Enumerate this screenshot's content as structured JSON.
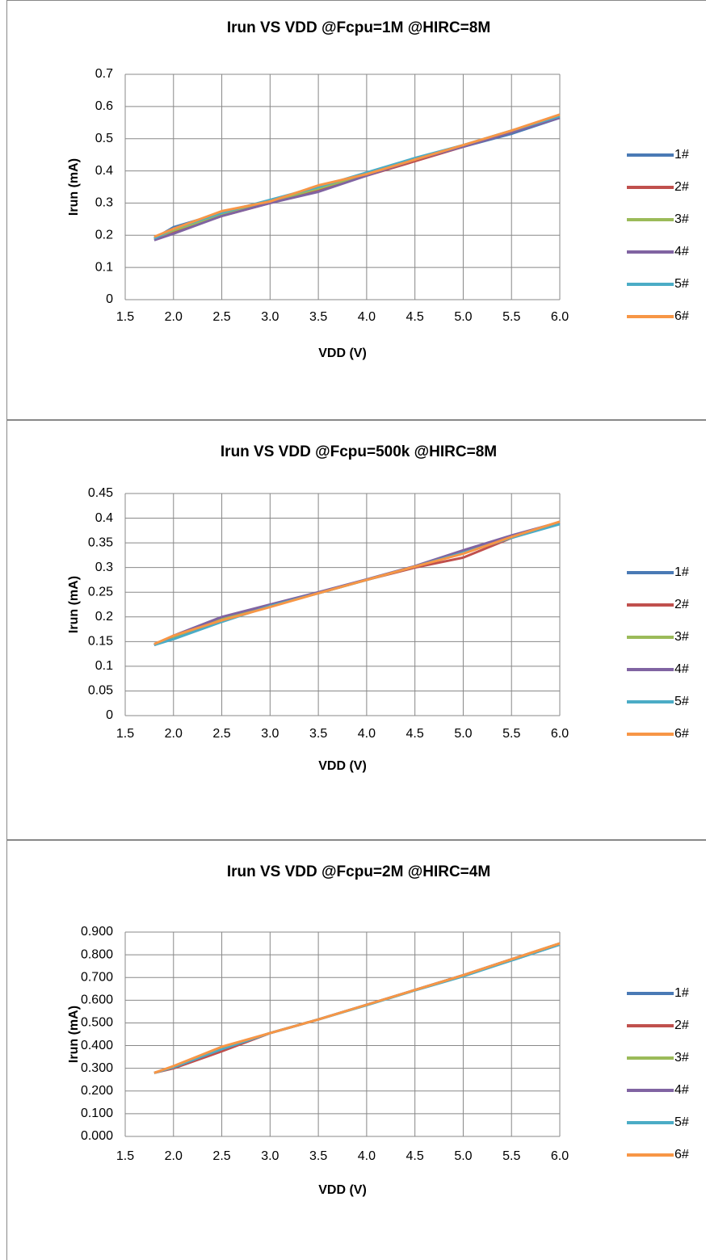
{
  "chart_data": [
    {
      "type": "line",
      "title": "Irun VS VDD @Fcpu=1M @HIRC=8M",
      "x_label": "VDD (V)",
      "y_label": "Irun (mA)",
      "x": [
        1.8,
        2.0,
        2.5,
        3.0,
        3.5,
        4.0,
        4.5,
        5.0,
        5.5,
        6.0
      ],
      "xlim": [
        1.5,
        6.0
      ],
      "xticks": [
        1.5,
        {
          "value": 2,
          "label": "2.0"
        },
        2.5,
        {
          "value": 3,
          "label": "3.0"
        },
        3.5,
        {
          "value": 4,
          "label": "4.0"
        },
        4.5,
        {
          "value": 5,
          "label": "5.0"
        },
        5.5,
        {
          "value": 6,
          "label": "6.0"
        }
      ],
      "ylim": [
        0,
        0.7
      ],
      "yticks": [
        0,
        0.1,
        0.2,
        0.3,
        0.4,
        0.5,
        0.6,
        0.7
      ],
      "grid": true,
      "legend": "right",
      "series": [
        {
          "name": "1#",
          "color": "#4a7ab5",
          "values": [
            0.19,
            0.225,
            0.27,
            0.305,
            0.345,
            0.39,
            0.435,
            0.475,
            0.515,
            0.565
          ]
        },
        {
          "name": "2#",
          "color": "#c0504d",
          "values": [
            0.19,
            0.21,
            0.26,
            0.3,
            0.34,
            0.385,
            0.43,
            0.475,
            0.52,
            0.57
          ]
        },
        {
          "name": "3#",
          "color": "#9bbb59",
          "values": [
            0.19,
            0.215,
            0.265,
            0.305,
            0.345,
            0.39,
            0.435,
            0.48,
            0.52,
            0.57
          ]
        },
        {
          "name": "4#",
          "color": "#8064a2",
          "values": [
            0.185,
            0.205,
            0.26,
            0.3,
            0.335,
            0.385,
            0.435,
            0.475,
            0.52,
            0.565
          ]
        },
        {
          "name": "5#",
          "color": "#4bacc6",
          "values": [
            0.19,
            0.22,
            0.27,
            0.31,
            0.35,
            0.395,
            0.44,
            0.48,
            0.525,
            0.57
          ]
        },
        {
          "name": "6#",
          "color": "#f79646",
          "values": [
            0.195,
            0.22,
            0.275,
            0.305,
            0.355,
            0.39,
            0.435,
            0.48,
            0.525,
            0.575
          ]
        }
      ]
    },
    {
      "type": "line",
      "title": "Irun VS VDD @Fcpu=500k @HIRC=8M",
      "x_label": "VDD (V)",
      "y_label": "Irun (mA)",
      "x": [
        1.8,
        2.0,
        2.5,
        3.0,
        3.5,
        4.0,
        4.5,
        5.0,
        5.5,
        6.0
      ],
      "xlim": [
        1.5,
        6.0
      ],
      "xticks": [
        1.5,
        {
          "value": 2,
          "label": "2.0"
        },
        2.5,
        {
          "value": 3,
          "label": "3.0"
        },
        3.5,
        {
          "value": 4,
          "label": "4.0"
        },
        4.5,
        {
          "value": 5,
          "label": "5.0"
        },
        5.5,
        {
          "value": 6,
          "label": "6.0"
        }
      ],
      "ylim": [
        0,
        0.45
      ],
      "yticks": [
        0,
        0.05,
        0.1,
        0.15,
        0.2,
        0.25,
        0.3,
        0.35,
        0.4,
        0.45
      ],
      "grid": true,
      "legend": "right",
      "series": [
        {
          "name": "1#",
          "color": "#4a7ab5",
          "values": [
            0.143,
            0.16,
            0.195,
            0.222,
            0.248,
            0.275,
            0.302,
            0.33,
            0.362,
            0.39
          ]
        },
        {
          "name": "2#",
          "color": "#c0504d",
          "values": [
            0.143,
            0.16,
            0.193,
            0.222,
            0.248,
            0.275,
            0.3,
            0.32,
            0.36,
            0.392
          ]
        },
        {
          "name": "3#",
          "color": "#9bbb59",
          "values": [
            0.143,
            0.16,
            0.195,
            0.222,
            0.248,
            0.275,
            0.302,
            0.33,
            0.362,
            0.392
          ]
        },
        {
          "name": "4#",
          "color": "#8064a2",
          "values": [
            0.143,
            0.162,
            0.2,
            0.225,
            0.25,
            0.276,
            0.303,
            0.335,
            0.365,
            0.392
          ]
        },
        {
          "name": "5#",
          "color": "#4bacc6",
          "values": [
            0.143,
            0.155,
            0.19,
            0.222,
            0.248,
            0.275,
            0.302,
            0.33,
            0.36,
            0.388
          ]
        },
        {
          "name": "6#",
          "color": "#f79646",
          "values": [
            0.145,
            0.162,
            0.193,
            0.22,
            0.248,
            0.275,
            0.302,
            0.328,
            0.362,
            0.393
          ]
        }
      ]
    },
    {
      "type": "line",
      "title": "Irun VS VDD @Fcpu=2M @HIRC=4M",
      "x_label": "VDD (V)",
      "y_label": "Irun (mA)",
      "x": [
        1.8,
        2.0,
        2.5,
        3.0,
        3.5,
        4.0,
        4.5,
        5.0,
        5.5,
        6.0
      ],
      "xlim": [
        1.5,
        6.0
      ],
      "xticks": [
        1.5,
        {
          "value": 2,
          "label": "2.0"
        },
        2.5,
        {
          "value": 3,
          "label": "3.0"
        },
        3.5,
        {
          "value": 4,
          "label": "4.0"
        },
        4.5,
        {
          "value": 5,
          "label": "5.0"
        },
        5.5,
        {
          "value": 6,
          "label": "6.0"
        }
      ],
      "ylim": [
        0,
        0.9
      ],
      "yticks": [
        {
          "value": 0,
          "label": "0.000"
        },
        {
          "value": 0.1,
          "label": "0.100"
        },
        {
          "value": 0.2,
          "label": "0.200"
        },
        {
          "value": 0.3,
          "label": "0.300"
        },
        {
          "value": 0.4,
          "label": "0.400"
        },
        {
          "value": 0.5,
          "label": "0.500"
        },
        {
          "value": 0.6,
          "label": "0.600"
        },
        {
          "value": 0.7,
          "label": "0.700"
        },
        {
          "value": 0.8,
          "label": "0.800"
        },
        {
          "value": 0.9,
          "label": "0.900"
        }
      ],
      "grid": true,
      "legend": "right",
      "series": [
        {
          "name": "1#",
          "color": "#4a7ab5",
          "values": [
            0.28,
            0.305,
            0.385,
            0.455,
            0.515,
            0.58,
            0.645,
            0.71,
            0.775,
            0.845
          ]
        },
        {
          "name": "2#",
          "color": "#c0504d",
          "values": [
            0.28,
            0.3,
            0.375,
            0.455,
            0.515,
            0.58,
            0.645,
            0.71,
            0.78,
            0.85
          ]
        },
        {
          "name": "3#",
          "color": "#9bbb59",
          "values": [
            0.28,
            0.305,
            0.39,
            0.455,
            0.515,
            0.58,
            0.645,
            0.71,
            0.78,
            0.85
          ]
        },
        {
          "name": "4#",
          "color": "#8064a2",
          "values": [
            0.28,
            0.305,
            0.385,
            0.455,
            0.515,
            0.58,
            0.645,
            0.71,
            0.78,
            0.848
          ]
        },
        {
          "name": "5#",
          "color": "#4bacc6",
          "values": [
            0.28,
            0.305,
            0.385,
            0.455,
            0.515,
            0.578,
            0.643,
            0.705,
            0.775,
            0.845
          ]
        },
        {
          "name": "6#",
          "color": "#f79646",
          "values": [
            0.28,
            0.31,
            0.395,
            0.455,
            0.515,
            0.58,
            0.645,
            0.71,
            0.78,
            0.85
          ]
        }
      ]
    }
  ]
}
